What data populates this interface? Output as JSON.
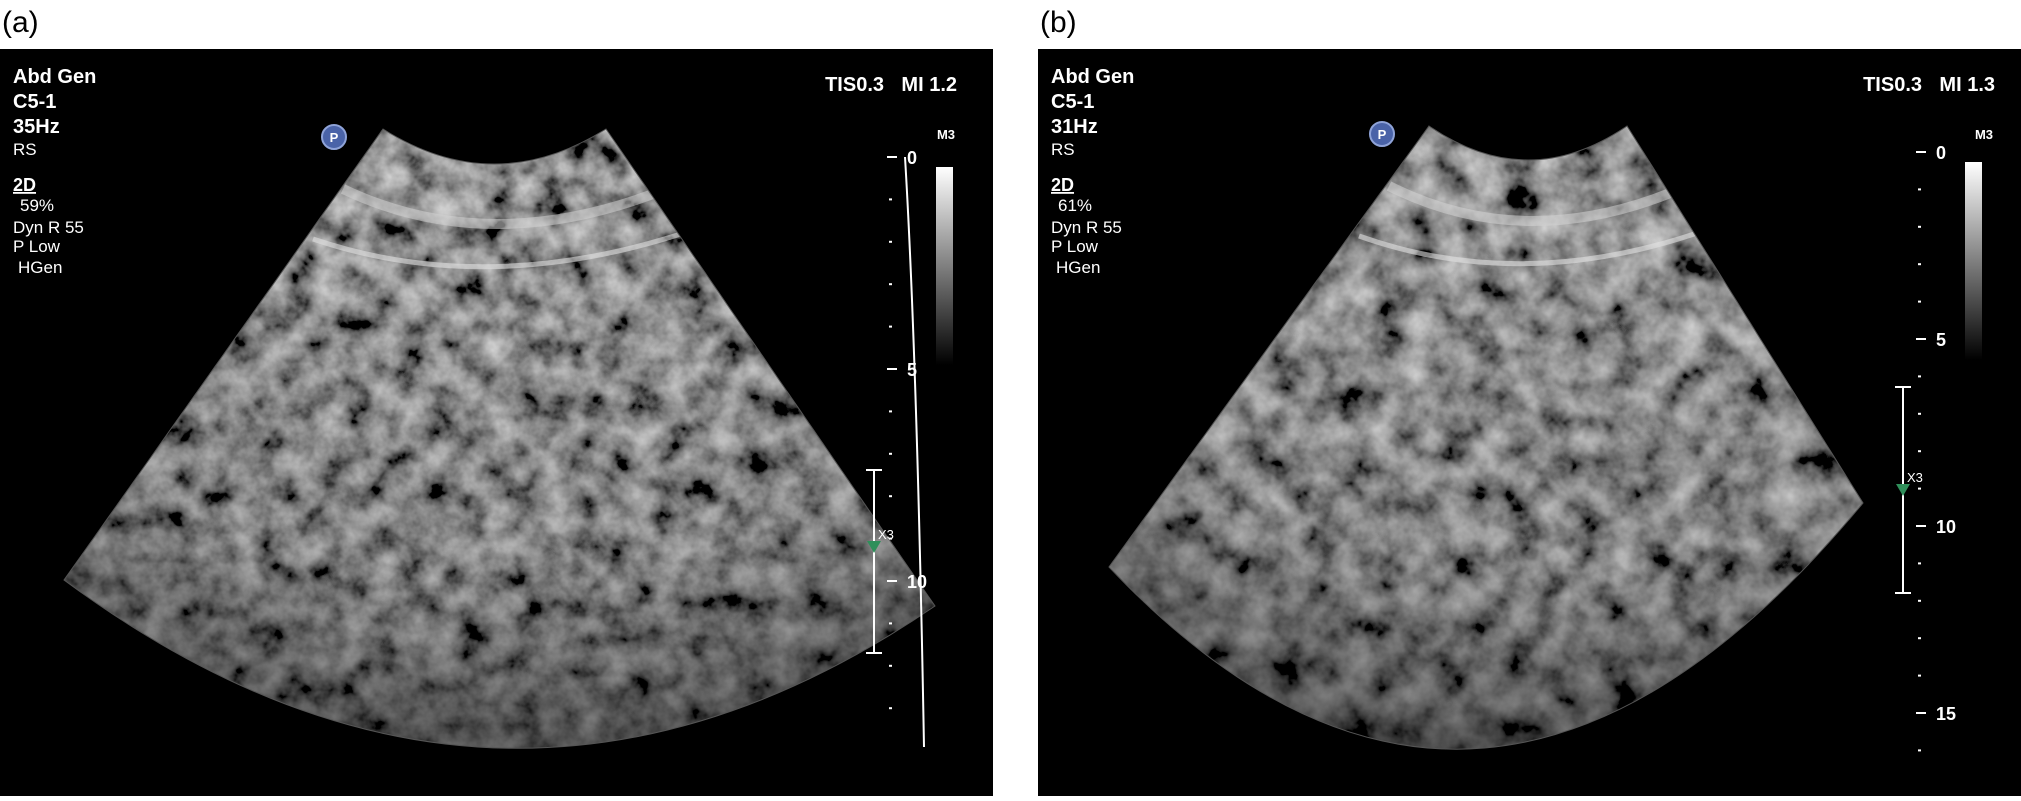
{
  "panels": [
    {
      "label": "(a)",
      "left_info": [
        "Abd Gen",
        "C5-1",
        "35Hz",
        "RS",
        "2D",
        "59%",
        "Dyn R 55",
        "P Low",
        "HGen"
      ],
      "tis": "TIS0.3",
      "mi": "MI 1.2",
      "map": "M3",
      "icon": "P",
      "depth_labels": [
        0,
        5,
        10
      ],
      "focus": "X3"
    },
    {
      "label": "(b)",
      "left_info": [
        "Abd Gen",
        "C5-1",
        "31Hz",
        "RS",
        "2D",
        "61%",
        "Dyn R 55",
        "P Low",
        "HGen"
      ],
      "tis": "TIS0.3",
      "mi": "MI 1.3",
      "map": "M3",
      "icon": "P",
      "depth_labels": [
        0,
        5,
        10,
        15
      ],
      "focus": "X3"
    }
  ]
}
